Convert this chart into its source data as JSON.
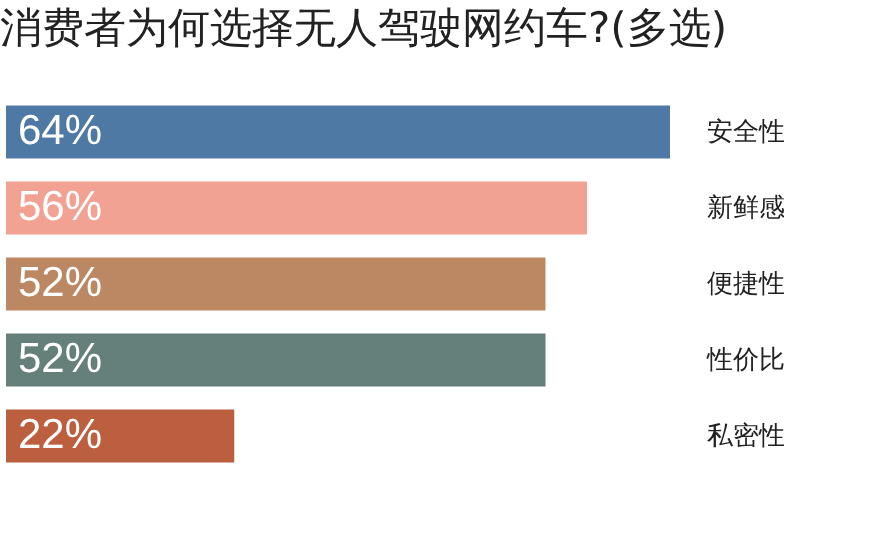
{
  "chart_data": {
    "type": "bar",
    "orientation": "horizontal",
    "title": "消费者为何选择无人驾驶网约车?(多选)",
    "categories": [
      "安全性",
      "新鲜感",
      "便捷性",
      "性价比",
      "私密性"
    ],
    "values": [
      64,
      56,
      52,
      52,
      22
    ],
    "colors": [
      "#4f79a5",
      "#f2a293",
      "#bb8863",
      "#657f7b",
      "#bc5f3f"
    ],
    "value_labels": [
      "64%",
      "56%",
      "52%",
      "52%",
      "22%"
    ],
    "legend": false,
    "grid": false
  }
}
